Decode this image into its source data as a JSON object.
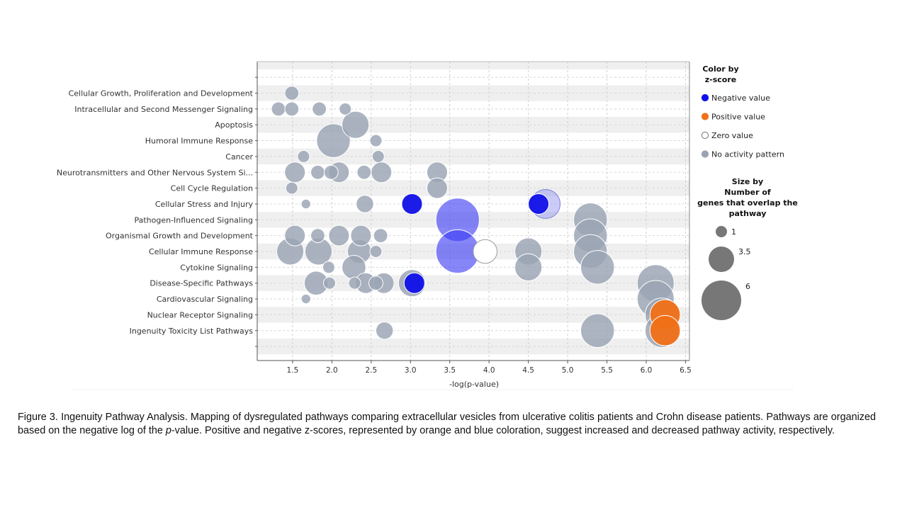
{
  "chart_data": {
    "type": "scatter",
    "xlabel": "-log(p-value)",
    "xlim": [
      1.05,
      6.55
    ],
    "x_ticks": [
      "1.5",
      "2.0",
      "2.5",
      "3.0",
      "3.5",
      "4.0",
      "4.5",
      "5.0",
      "5.5",
      "6.0",
      "6.5"
    ],
    "categories": [
      "Cellular Growth, Proliferation and Development",
      "Intracellular and Second Messenger Signaling",
      "Apoptosis",
      "Humoral Immune Response",
      "Cancer",
      "Neurotransmitters and Other Nervous System Si...",
      "Cell Cycle Regulation",
      "Cellular Stress and Injury",
      "Pathogen-Influenced Signaling",
      "Organismal Growth and Development",
      "Cellular Immune Response",
      "Cytokine Signaling",
      "Disease-Specific Pathways",
      "Cardiovascular Signaling",
      "Nuclear Receptor Signaling",
      "Ingenuity Toxicity List Pathways"
    ],
    "colors": {
      "negative": "#1010e8",
      "positive": "#f07018",
      "zero": "#ffffff",
      "none": "#9aa3b3",
      "size_legend": "#777777"
    },
    "points": [
      {
        "category": 0,
        "x": 1.49,
        "size": 1.5,
        "z": "none"
      },
      {
        "category": 1,
        "x": 1.32,
        "size": 1.5,
        "z": "none"
      },
      {
        "category": 1,
        "x": 1.49,
        "size": 1.5,
        "z": "none"
      },
      {
        "category": 1,
        "x": 1.84,
        "size": 1.5,
        "z": "none"
      },
      {
        "category": 1,
        "x": 2.17,
        "size": 1.2,
        "z": "none"
      },
      {
        "category": 2,
        "x": 2.3,
        "size": 3.5,
        "z": "none"
      },
      {
        "category": 3,
        "x": 2.02,
        "size": 4.5,
        "z": "none"
      },
      {
        "category": 3,
        "x": 2.56,
        "size": 1.2,
        "z": "none"
      },
      {
        "category": 4,
        "x": 1.64,
        "size": 1.2,
        "z": "none"
      },
      {
        "category": 4,
        "x": 2.59,
        "size": 1.2,
        "z": "none"
      },
      {
        "category": 5,
        "x": 1.53,
        "size": 2.5,
        "z": "none"
      },
      {
        "category": 5,
        "x": 1.82,
        "size": 1.5,
        "z": "none"
      },
      {
        "category": 5,
        "x": 1.99,
        "size": 1.5,
        "z": "none"
      },
      {
        "category": 5,
        "x": 2.09,
        "size": 2.5,
        "z": "none"
      },
      {
        "category": 5,
        "x": 2.41,
        "size": 1.5,
        "z": "none"
      },
      {
        "category": 5,
        "x": 2.63,
        "size": 2.5,
        "z": "none"
      },
      {
        "category": 5,
        "x": 3.34,
        "size": 2.5,
        "z": "none"
      },
      {
        "category": 6,
        "x": 1.49,
        "size": 1.2,
        "z": "none"
      },
      {
        "category": 6,
        "x": 3.34,
        "size": 2.5,
        "z": "none"
      },
      {
        "category": 7,
        "x": 1.67,
        "size": 0.8,
        "z": "none"
      },
      {
        "category": 7,
        "x": 2.42,
        "size": 2.0,
        "z": "none"
      },
      {
        "category": 7,
        "x": 3.02,
        "size": 2.5,
        "z": "negative"
      },
      {
        "category": 7,
        "x": 4.63,
        "size": 2.5,
        "z": "negative"
      },
      {
        "category": 7,
        "x": 4.72,
        "size": 3.8,
        "z": "negative",
        "light": true
      },
      {
        "category": 8,
        "x": 3.6,
        "size": 6.0,
        "z": "negative",
        "light": true
      },
      {
        "category": 8,
        "x": 5.29,
        "size": 4.5,
        "z": "none"
      },
      {
        "category": 9,
        "x": 1.53,
        "size": 2.5,
        "z": "none"
      },
      {
        "category": 9,
        "x": 1.82,
        "size": 1.5,
        "z": "none"
      },
      {
        "category": 9,
        "x": 2.09,
        "size": 2.5,
        "z": "none"
      },
      {
        "category": 9,
        "x": 2.37,
        "size": 2.5,
        "z": "none"
      },
      {
        "category": 9,
        "x": 2.62,
        "size": 1.5,
        "z": "none"
      },
      {
        "category": 9,
        "x": 5.29,
        "size": 4.5,
        "z": "none"
      },
      {
        "category": 10,
        "x": 1.47,
        "size": 3.5,
        "z": "none"
      },
      {
        "category": 10,
        "x": 1.83,
        "size": 3.5,
        "z": "none"
      },
      {
        "category": 10,
        "x": 2.35,
        "size": 3.0,
        "z": "none"
      },
      {
        "category": 10,
        "x": 2.56,
        "size": 1.2,
        "z": "none"
      },
      {
        "category": 10,
        "x": 3.6,
        "size": 6.0,
        "z": "negative",
        "light": true
      },
      {
        "category": 10,
        "x": 3.95,
        "size": 3.0,
        "z": "zero"
      },
      {
        "category": 10,
        "x": 4.5,
        "size": 3.5,
        "z": "none"
      },
      {
        "category": 10,
        "x": 5.29,
        "size": 4.5,
        "z": "none"
      },
      {
        "category": 11,
        "x": 1.96,
        "size": 1.2,
        "z": "none"
      },
      {
        "category": 11,
        "x": 2.28,
        "size": 3.0,
        "z": "none"
      },
      {
        "category": 11,
        "x": 4.5,
        "size": 3.5,
        "z": "none"
      },
      {
        "category": 11,
        "x": 5.38,
        "size": 4.5,
        "z": "none"
      },
      {
        "category": 12,
        "x": 1.8,
        "size": 3.0,
        "z": "none"
      },
      {
        "category": 12,
        "x": 1.97,
        "size": 1.2,
        "z": "none"
      },
      {
        "category": 12,
        "x": 2.29,
        "size": 1.2,
        "z": "none"
      },
      {
        "category": 12,
        "x": 2.43,
        "size": 2.5,
        "z": "none"
      },
      {
        "category": 12,
        "x": 2.56,
        "size": 1.5,
        "z": "none"
      },
      {
        "category": 12,
        "x": 2.66,
        "size": 2.5,
        "z": "none"
      },
      {
        "category": 12,
        "x": 3.02,
        "size": 3.5,
        "z": "none"
      },
      {
        "category": 12,
        "x": 3.05,
        "size": 2.5,
        "z": "negative"
      },
      {
        "category": 12,
        "x": 6.12,
        "size": 5.0,
        "z": "none"
      },
      {
        "category": 13,
        "x": 1.67,
        "size": 0.8,
        "z": "none"
      },
      {
        "category": 13,
        "x": 6.12,
        "size": 5.0,
        "z": "none"
      },
      {
        "category": 14,
        "x": 6.2,
        "size": 4.5,
        "z": "none"
      },
      {
        "category": 14,
        "x": 6.24,
        "size": 4.0,
        "z": "positive"
      },
      {
        "category": 15,
        "x": 2.67,
        "size": 2.0,
        "z": "none"
      },
      {
        "category": 15,
        "x": 5.38,
        "size": 4.5,
        "z": "none"
      },
      {
        "category": 15,
        "x": 6.2,
        "size": 4.5,
        "z": "none"
      },
      {
        "category": 15,
        "x": 6.24,
        "size": 4.0,
        "z": "positive"
      }
    ],
    "legend": {
      "color_title_line1": "Color by",
      "color_title_line2": "z-score",
      "items": [
        {
          "label": "Negative value",
          "z": "negative"
        },
        {
          "label": "Positive value",
          "z": "positive"
        },
        {
          "label": "Zero value",
          "z": "zero"
        },
        {
          "label": "No activity pattern",
          "z": "none"
        }
      ],
      "size_title_lines": [
        "Size by",
        "Number of",
        "genes that overlap the",
        "pathway"
      ],
      "size_items": [
        {
          "label": "1",
          "size": 1
        },
        {
          "label": "3.5",
          "size": 3.5
        },
        {
          "label": "6",
          "size": 6
        }
      ]
    }
  },
  "caption": {
    "text_before_italic": "Figure 3. Ingenuity Pathway Analysis. Mapping of dysregulated pathways comparing extracellular vesicles from ulcerative colitis patients and Crohn disease patients. Pathways are organized based on the negative log of the ",
    "italic": "p",
    "text_after_italic": "-value. Positive and negative z-scores, represented by orange and blue coloration, suggest increased and decreased pathway activity, respectively."
  }
}
